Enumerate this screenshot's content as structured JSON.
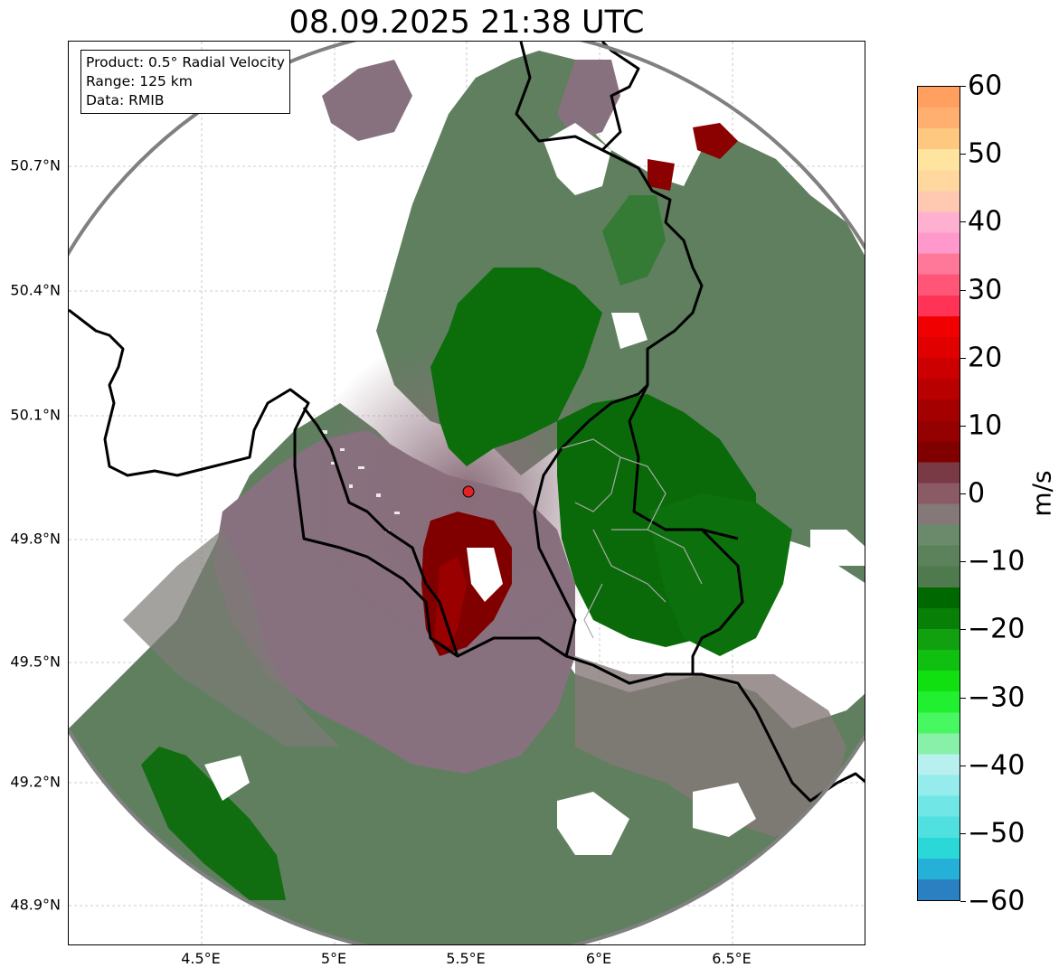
{
  "title": "08.09.2025 21:38 UTC",
  "info": {
    "product": "Product: 0.5° Radial Velocity",
    "range": "Range: 125 km",
    "source": "Data: RMIB"
  },
  "lat_labels": [
    "50.7°N",
    "50.4°N",
    "50.1°N",
    "49.8°N",
    "49.5°N",
    "49.2°N",
    "48.9°N"
  ],
  "lon_labels": [
    "4.5°E",
    "5°E",
    "5.5°E",
    "6°E",
    "6.5°E"
  ],
  "colorbar": {
    "unit": "m/s",
    "min": -60,
    "max": 60,
    "tick_labels": [
      "60",
      "50",
      "40",
      "30",
      "20",
      "10",
      "0",
      "−10",
      "−20",
      "−30",
      "−40",
      "−50",
      "−60"
    ],
    "colors": [
      "#2a80c0",
      "#25b0d8",
      "#2ad8d8",
      "#50e0e0",
      "#70e6e6",
      "#96ecec",
      "#b8f0f0",
      "#88f0a8",
      "#48f860",
      "#20f030",
      "#10e010",
      "#10c010",
      "#10a010",
      "#088008",
      "#006800",
      "#4e7a4e",
      "#5c825c",
      "#6b8a6b",
      "#857878",
      "#8a5a65",
      "#7a3a45",
      "#800000",
      "#950000",
      "#a50000",
      "#b80000",
      "#cc0000",
      "#e00000",
      "#f00000",
      "#ff3355",
      "#ff5577",
      "#ff7799",
      "#ff99cc",
      "#ffb0d0",
      "#ffc8b0",
      "#ffd8a0",
      "#ffe4a0",
      "#ffc880",
      "#ffb070",
      "#ffa060"
    ]
  },
  "radar_site": {
    "lat": 49.91,
    "lon": 5.5
  },
  "colors": {
    "outbound_near_zero": "#87717f",
    "inbound_near_zero": "#5f7f5f",
    "inbound_strong": "#0a6a0a",
    "outbound_strong": "#7a0000",
    "range_ring": "#808080",
    "border": "#000000"
  }
}
